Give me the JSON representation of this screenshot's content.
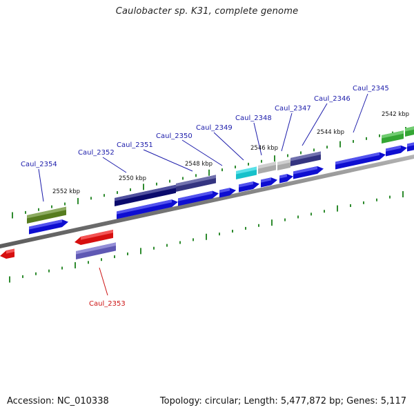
{
  "title": "Caulobacter sp. K31, complete genome",
  "footer": {
    "accession": "Accession: NC_010338",
    "summary": "Topology: circular; Length: 5,477,872 bp; Genes: 5,117"
  },
  "colors": {
    "backbone": "#8a8a8a",
    "tick": "#2e8b2e",
    "gene_label": "#1a1aaa",
    "gene_label_reverse": "#cc1111",
    "orf_blue": "#1010e8",
    "dark_navy": "#0c0c78",
    "slate": "#3a3a8e",
    "olive": "#5f8a22",
    "cyan": "#1ad6e0",
    "silver": "#bdbdbd",
    "red": "#ee1111",
    "lavender": "#6a62c8",
    "green": "#3ab83a"
  },
  "kbp_labels": [
    "2552 kbp",
    "2550 kbp",
    "2548 kbp",
    "2546 kbp",
    "2544 kbp",
    "2542 kbp"
  ],
  "gene_labels": [
    "Caul_2354",
    "Caul_2353",
    "Caul_2352",
    "Caul_2351",
    "Caul_2350",
    "Caul_2349",
    "Caul_2348",
    "Caul_2347",
    "Caul_2346",
    "Caul_2345"
  ]
}
